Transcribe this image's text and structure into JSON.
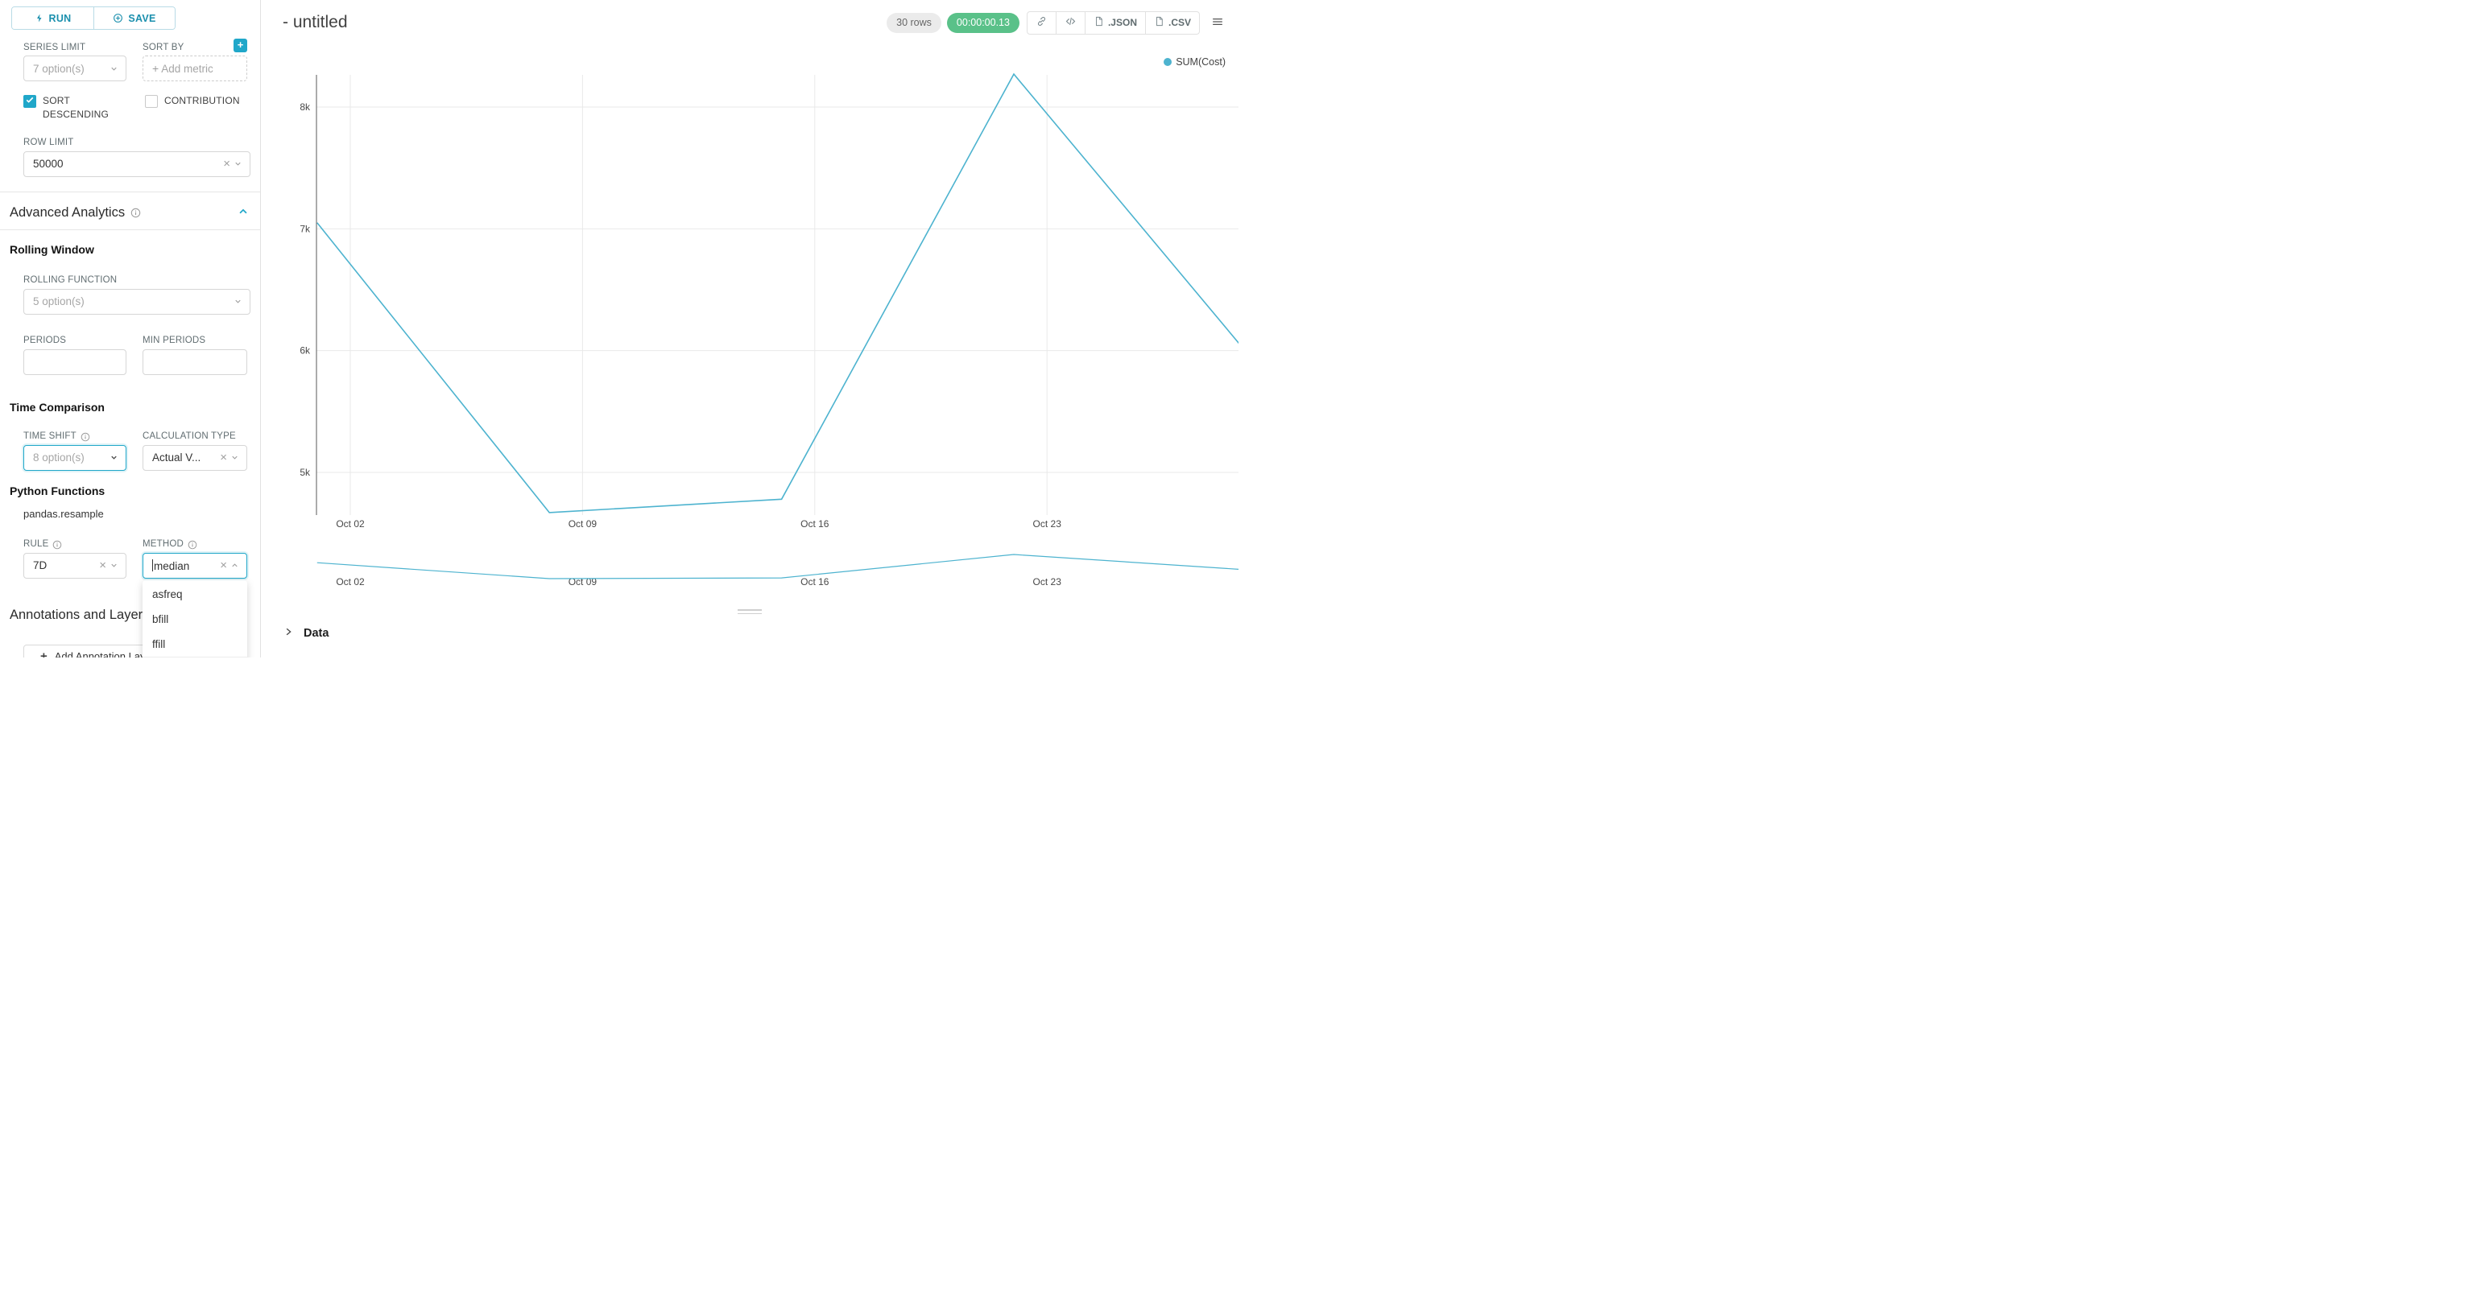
{
  "toolbar": {
    "run": "RUN",
    "save": "SAVE"
  },
  "controls": {
    "series_limit": {
      "label": "SERIES LIMIT",
      "placeholder": "7 option(s)"
    },
    "sort_by": {
      "label": "SORT BY",
      "placeholder": "Add metric"
    },
    "sort_descending_label": "SORT DESCENDING",
    "contribution_label": "CONTRIBUTION",
    "row_limit": {
      "label": "ROW LIMIT",
      "value": "50000"
    },
    "advanced_analytics_title": "Advanced Analytics",
    "rolling_window_title": "Rolling Window",
    "rolling_function": {
      "label": "ROLLING FUNCTION",
      "placeholder": "5 option(s)"
    },
    "periods_label": "PERIODS",
    "min_periods_label": "MIN PERIODS",
    "time_comparison_title": "Time Comparison",
    "time_shift": {
      "label": "TIME SHIFT",
      "placeholder": "8 option(s)"
    },
    "calculation_type": {
      "label": "CALCULATION TYPE",
      "value": "Actual V..."
    },
    "python_functions_title": "Python Functions",
    "python_functions_subtitle": "pandas.resample",
    "rule": {
      "label": "RULE",
      "value": "7D"
    },
    "method": {
      "label": "METHOD",
      "value": "median",
      "options": [
        "asfreq",
        "bfill",
        "ffill",
        "median"
      ],
      "selected": "median"
    },
    "annotations_title": "Annotations and Layers",
    "add_annotation_label": "Add Annotation Layer"
  },
  "header": {
    "title": "- untitled",
    "rows_badge": "30 rows",
    "timer": "00:00:00.13",
    "export_json": ".JSON",
    "export_csv": ".CSV"
  },
  "chart_data": {
    "type": "line",
    "title": "",
    "legend_position": "top-right",
    "grid": true,
    "legend": [
      {
        "label": "SUM(Cost)",
        "color": "#4db3cf"
      }
    ],
    "x_ticks": [
      {
        "label": "Oct 02",
        "day": 0
      },
      {
        "label": "Oct 09",
        "day": 7
      },
      {
        "label": "Oct 16",
        "day": 14
      },
      {
        "label": "Oct 23",
        "day": 21
      }
    ],
    "y_ticks": [
      {
        "label": "5k",
        "value": 5000
      },
      {
        "label": "6k",
        "value": 6000
      },
      {
        "label": "7k",
        "value": 7000
      },
      {
        "label": "8k",
        "value": 8000
      }
    ],
    "ylim": [
      4560,
      8270
    ],
    "series": [
      {
        "name": "SUM(Cost)",
        "color": "#4db3cf",
        "points": [
          {
            "day": -1,
            "value": 7050
          },
          {
            "day": 6,
            "value": 4670
          },
          {
            "day": 13,
            "value": 4780
          },
          {
            "day": 20,
            "value": 8270
          },
          {
            "day": 27,
            "value": 5990
          }
        ]
      }
    ],
    "mini_preview": true
  },
  "data_panel": {
    "title": "Data"
  },
  "colors": {
    "primary": "#20a7c9",
    "success": "#5ac189",
    "series": "#4db3cf"
  }
}
